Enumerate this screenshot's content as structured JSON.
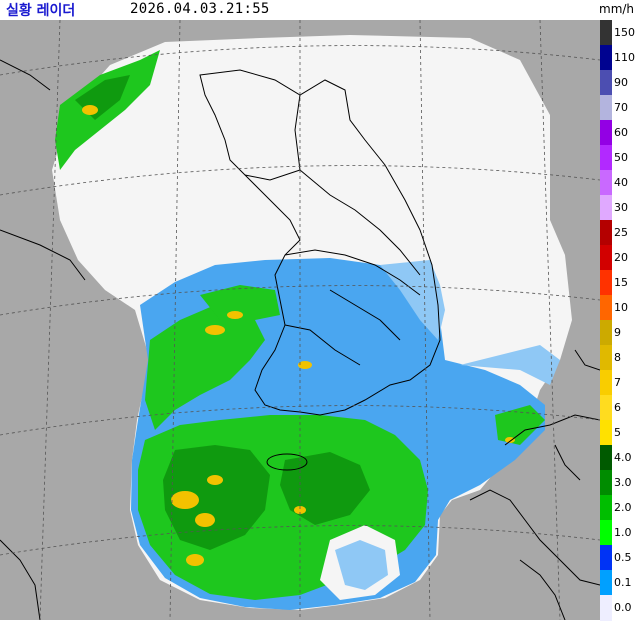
{
  "header": {
    "title": "실황 레이더",
    "timestamp": "2026.04.03.21:55",
    "unit": "mm/h"
  },
  "legend": {
    "items": [
      {
        "label": "150",
        "color": "#333333"
      },
      {
        "label": "110",
        "color": "#000390"
      },
      {
        "label": "90",
        "color": "#4c4eb1"
      },
      {
        "label": "70",
        "color": "#b3b4de"
      },
      {
        "label": "60",
        "color": "#9300e4"
      },
      {
        "label": "50",
        "color": "#b229ff"
      },
      {
        "label": "40",
        "color": "#c969ff"
      },
      {
        "label": "30",
        "color": "#e0a9ff"
      },
      {
        "label": "25",
        "color": "#b40000"
      },
      {
        "label": "20",
        "color": "#d20000"
      },
      {
        "label": "15",
        "color": "#ff3200"
      },
      {
        "label": "10",
        "color": "#ff6600"
      },
      {
        "label": "9",
        "color": "#ccaa00"
      },
      {
        "label": "8",
        "color": "#e0b900"
      },
      {
        "label": "7",
        "color": "#f9cd00"
      },
      {
        "label": "6",
        "color": "#ffdc1f"
      },
      {
        "label": "5",
        "color": "#ffe100"
      },
      {
        "label": "4.0",
        "color": "#005a00"
      },
      {
        "label": "3.0",
        "color": "#008c00"
      },
      {
        "label": "2.0",
        "color": "#00be00"
      },
      {
        "label": "1.0",
        "color": "#00ff00"
      },
      {
        "label": "0.5",
        "color": "#0033f5"
      },
      {
        "label": "0.1",
        "color": "#00a0ff"
      },
      {
        "label": "0.0",
        "color": "#eeeeff"
      }
    ]
  },
  "colors": {
    "background_gray": "#a8a8a8",
    "no_rain": "#f5f5f5",
    "light_blue": "#4aa6f0",
    "mid_blue": "#2a7ee0",
    "green": "#1ec71e",
    "dark_green": "#0f9a0f",
    "yellow": "#f2c200",
    "coast_line": "#000000",
    "grid_line": "#555555"
  }
}
